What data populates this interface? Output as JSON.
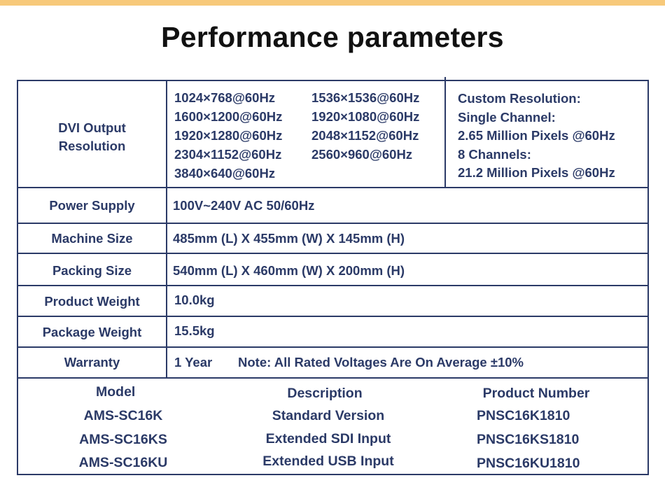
{
  "title": "Performance parameters",
  "dvi": {
    "label_line1": "DVI Output",
    "label_line2": "Resolution",
    "resolutions_col1": [
      "1024×768@60Hz",
      "1600×1200@60Hz",
      "1920×1280@60Hz",
      "2304×1152@60Hz",
      "3840×640@60Hz"
    ],
    "resolutions_col2": [
      "1536×1536@60Hz",
      "1920×1080@60Hz",
      "2048×1152@60Hz",
      "2560×960@60Hz"
    ],
    "custom": [
      "Custom Resolution:",
      "Single Channel:",
      "2.65 Million Pixels @60Hz",
      "8 Channels:",
      "21.2 Million Pixels @60Hz"
    ]
  },
  "specs": [
    {
      "label": "Power Supply",
      "value": "100V~240V AC 50/60Hz"
    },
    {
      "label": "Machine Size",
      "value": "485mm (L) X 455mm (W) X 145mm (H)"
    },
    {
      "label": "Packing Size",
      "value": "540mm (L) X 460mm (W) X 200mm (H)"
    },
    {
      "label": "Product Weight",
      "value": "10.0kg"
    },
    {
      "label": "Package Weight",
      "value": "15.5kg"
    },
    {
      "label": "Warranty",
      "value": "1 Year",
      "note": "Note: All Rated Voltages Are On Average ±10%"
    }
  ],
  "models": {
    "headers": {
      "model": "Model",
      "description": "Description",
      "product_number": "Product Number"
    },
    "rows": [
      {
        "model": "AMS-SC16K",
        "description": "Standard Version",
        "product_number": "PNSC16K1810"
      },
      {
        "model": "AMS-SC16KS",
        "description": "Extended SDI Input",
        "product_number": "PNSC16KS1810"
      },
      {
        "model": "AMS-SC16KU",
        "description": "Extended USB Input",
        "product_number": "PNSC16KU1810"
      }
    ]
  },
  "colors": {
    "accent_bar": "#f7c97a",
    "text": "#2b3a67",
    "border": "#2b3a67",
    "title": "#111111"
  }
}
